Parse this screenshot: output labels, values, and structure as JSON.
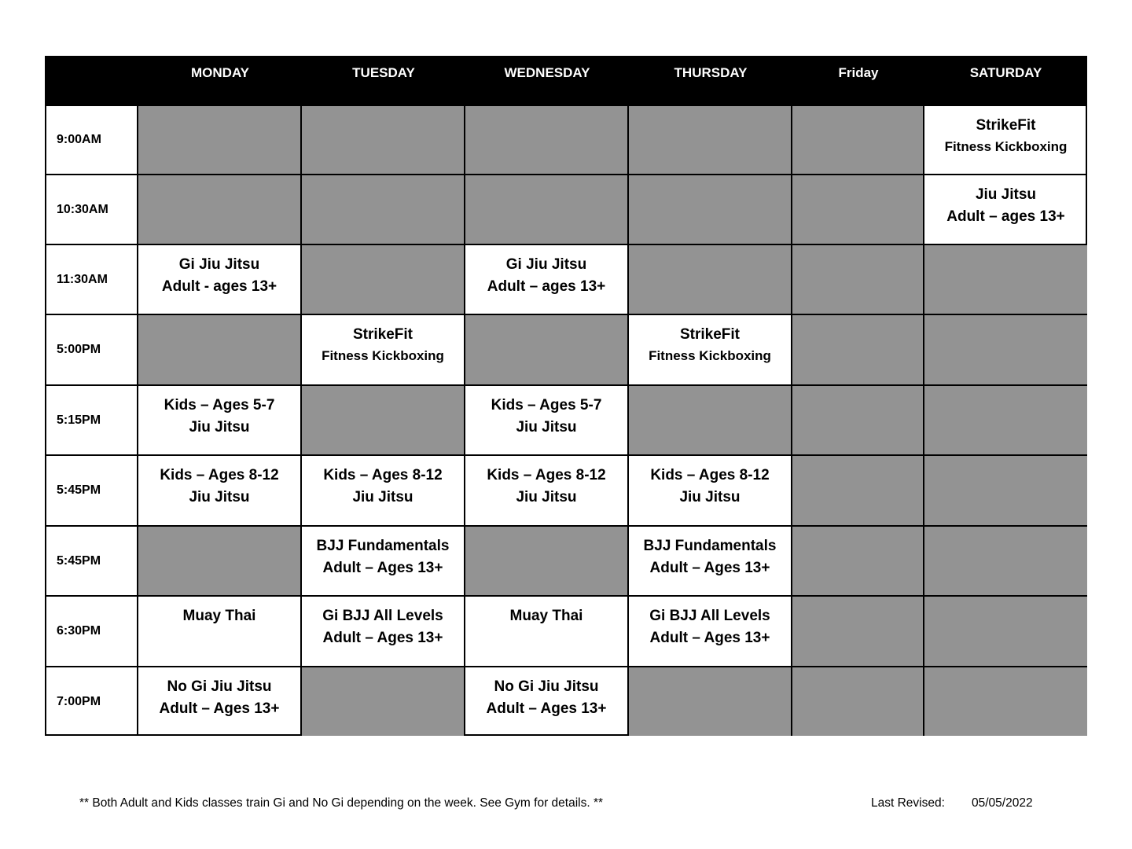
{
  "days": [
    "MONDAY",
    "TUESDAY",
    "WEDNESDAY",
    "THURSDAY",
    "Friday",
    "SATURDAY"
  ],
  "rows": [
    {
      "time": "9:00AM",
      "cells": [
        null,
        null,
        null,
        null,
        null,
        [
          "StrikeFit",
          "Fitness Kickboxing"
        ]
      ]
    },
    {
      "time": "10:30AM",
      "cells": [
        null,
        null,
        null,
        null,
        null,
        [
          "Jiu Jitsu",
          "Adult – ages 13+"
        ]
      ]
    },
    {
      "time": "11:30AM",
      "cells": [
        [
          "Gi Jiu Jitsu",
          "Adult - ages 13+"
        ],
        null,
        [
          "Gi Jiu Jitsu",
          "Adult – ages 13+"
        ],
        null,
        null,
        null
      ]
    },
    {
      "time": "5:00PM",
      "cells": [
        null,
        [
          "StrikeFit",
          "Fitness Kickboxing"
        ],
        null,
        [
          "StrikeFit",
          "Fitness Kickboxing"
        ],
        null,
        null
      ]
    },
    {
      "time": "5:15PM",
      "cells": [
        [
          "Kids – Ages 5-7",
          "Jiu Jitsu"
        ],
        null,
        [
          "Kids – Ages 5-7",
          "Jiu Jitsu"
        ],
        null,
        null,
        null
      ]
    },
    {
      "time": "5:45PM",
      "cells": [
        [
          "Kids – Ages 8-12",
          "Jiu Jitsu"
        ],
        [
          "Kids – Ages 8-12",
          "Jiu Jitsu"
        ],
        [
          "Kids – Ages 8-12",
          "Jiu Jitsu"
        ],
        [
          "Kids – Ages 8-12",
          "Jiu Jitsu"
        ],
        null,
        null
      ]
    },
    {
      "time": "5:45PM",
      "cells": [
        null,
        [
          "BJJ Fundamentals",
          "Adult – Ages 13+"
        ],
        null,
        [
          "BJJ Fundamentals",
          "Adult – Ages 13+"
        ],
        null,
        null
      ]
    },
    {
      "time": "6:30PM",
      "cells": [
        [
          "Muay Thai"
        ],
        [
          "Gi BJJ All Levels",
          "Adult – Ages 13+"
        ],
        [
          "Muay Thai"
        ],
        [
          "Gi BJJ All Levels",
          "Adult – Ages 13+"
        ],
        null,
        null
      ]
    },
    {
      "time": "7:00PM",
      "cells": [
        [
          "No Gi Jiu Jitsu",
          "Adult – Ages 13+"
        ],
        null,
        [
          "No Gi Jiu Jitsu",
          "Adult – Ages 13+"
        ],
        null,
        null,
        null
      ]
    }
  ],
  "footer": {
    "note": "** Both Adult and Kids classes train Gi and No Gi depending on the week.  See Gym for details. **",
    "revised_label": "Last Revised:",
    "revised_date": "05/05/2022"
  },
  "colors": {
    "header_bg": "#000000",
    "empty_cell": "#939393"
  }
}
